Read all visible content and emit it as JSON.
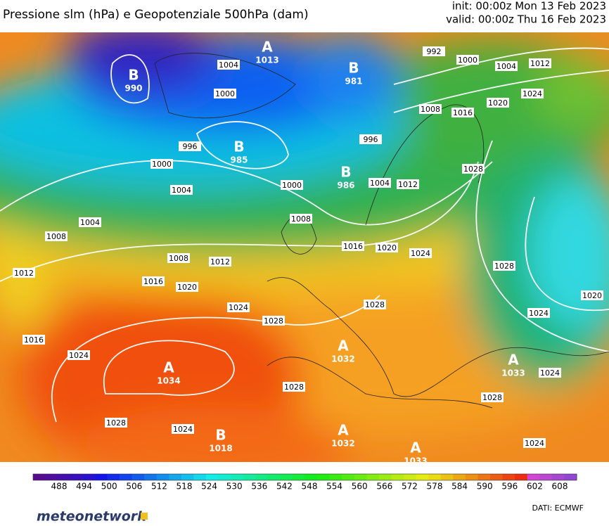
{
  "header": {
    "title": "Pressione slm (hPa) e Geopotenziale 500hPa (dam)",
    "init": "init: 00:00z Mon 13 Feb 2023",
    "valid": "valid: 00:00z Thu 16 Feb 2023"
  },
  "centers": [
    {
      "letter": "B",
      "value": 990
    },
    {
      "letter": "A",
      "value": 1013
    },
    {
      "letter": "B",
      "value": 981
    },
    {
      "letter": "B",
      "value": 985
    },
    {
      "letter": "B",
      "value": 986
    },
    {
      "letter": "A",
      "value": 1034
    },
    {
      "letter": "A",
      "value": 1032
    },
    {
      "letter": "A",
      "value": 1033
    },
    {
      "letter": "B",
      "value": 1018
    },
    {
      "letter": "A",
      "value": 1032
    },
    {
      "letter": "A",
      "value": 1033
    }
  ],
  "isobar_labels": [
    1004,
    1000,
    996,
    1000,
    1004,
    1000,
    1008,
    1004,
    1008,
    1012,
    1008,
    1012,
    1016,
    1020,
    1024,
    1028,
    1016,
    1024,
    1028,
    1028,
    1024,
    992,
    1000,
    1004,
    1012,
    1024,
    1008,
    1016,
    1020,
    1028,
    1016,
    1020,
    1024,
    1028,
    1024,
    1028,
    996,
    1004,
    1012,
    1028,
    1024,
    1020,
    1024
  ],
  "colorbar": {
    "ticks": [
      488,
      494,
      500,
      506,
      512,
      518,
      524,
      530,
      536,
      542,
      548,
      554,
      560,
      566,
      572,
      578,
      584,
      590,
      596,
      602,
      608
    ]
  },
  "footer": {
    "brand": "meteonetwork",
    "source": "DATI: ECMWF"
  }
}
